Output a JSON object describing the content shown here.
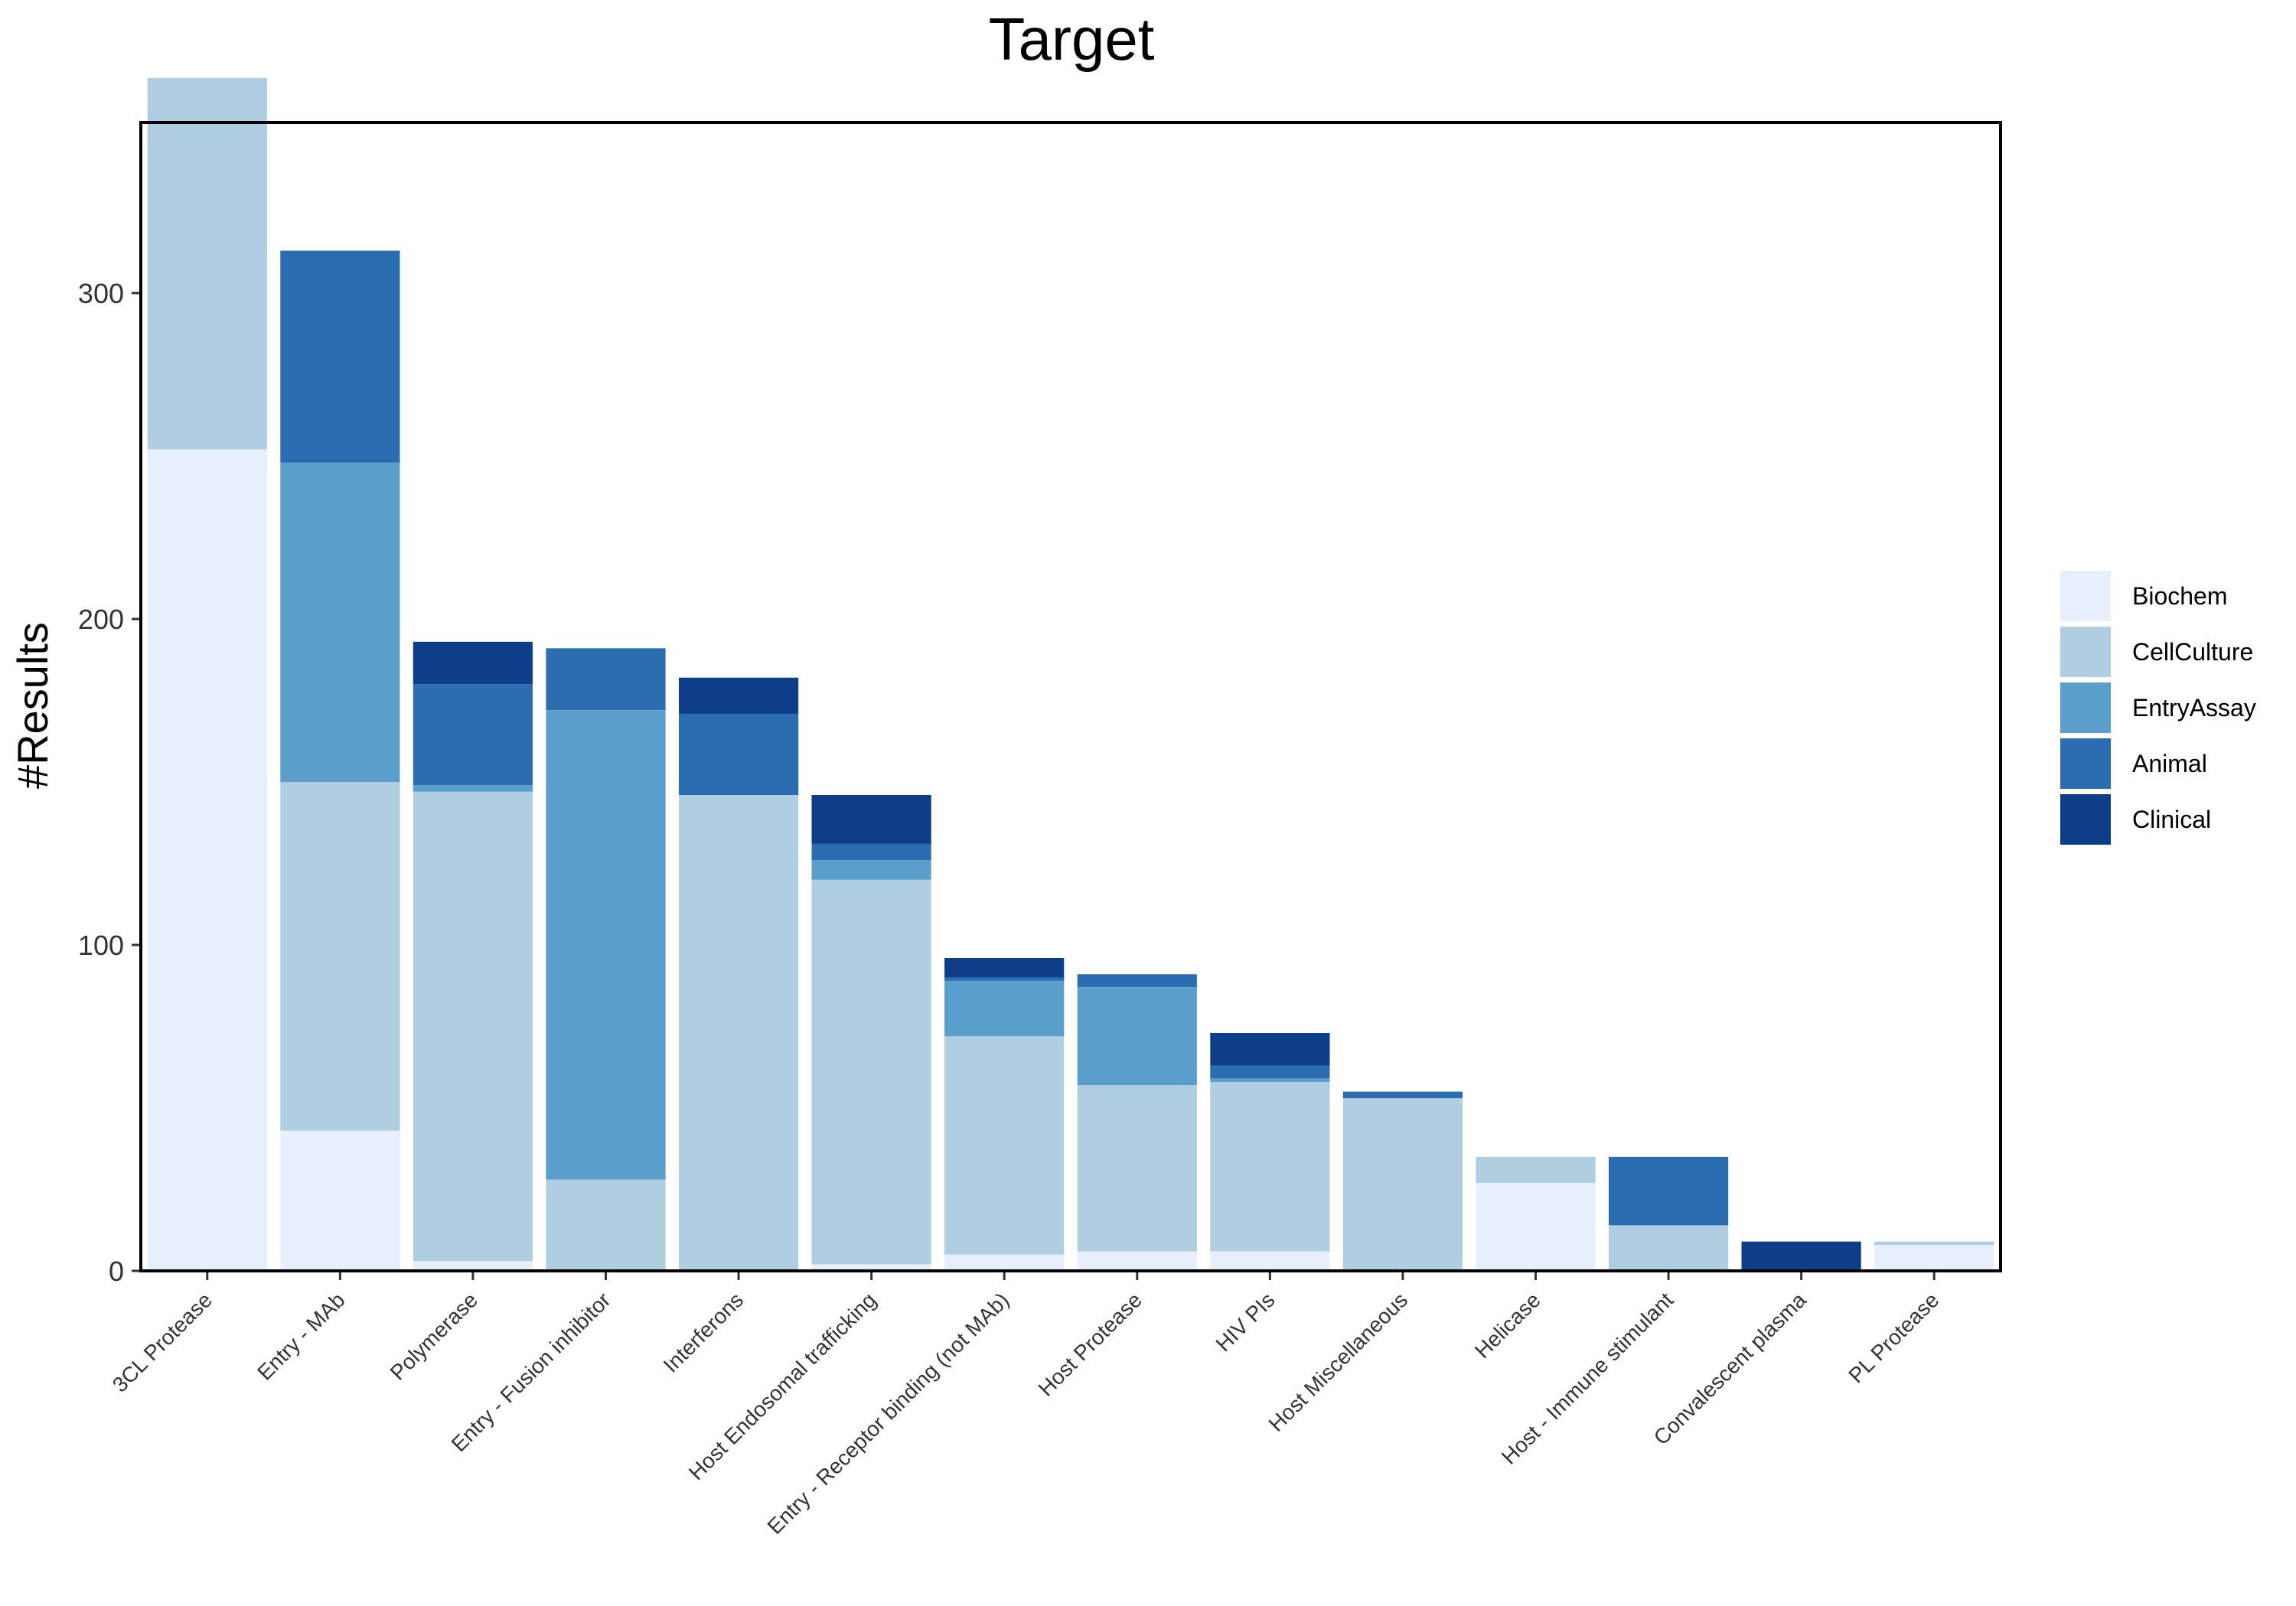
{
  "chart_data": {
    "type": "bar",
    "stacked": true,
    "title": "Target",
    "xlabel": "",
    "ylabel": "#Results",
    "ylim": [
      0,
      366
    ],
    "yticks": [
      0,
      100,
      200,
      300
    ],
    "grid": false,
    "legend_position": "right",
    "categories": [
      "3CL Protease",
      "Entry - MAb",
      "Polymerase",
      "Entry - Fusion inhibitor",
      "Interferons",
      "Host Endosomal trafficking",
      "Entry - Receptor binding (not MAb)",
      "Host Protease",
      "HIV PIs",
      "Host Miscellaneous",
      "Helicase",
      "Host - Immune stimulant",
      "Convalescent plasma",
      "PL Protease"
    ],
    "series": [
      {
        "name": "Biochem",
        "color": "#e8effc",
        "values": [
          252,
          43,
          3,
          0,
          0,
          2,
          5,
          6,
          6,
          0,
          27,
          0,
          0,
          8
        ]
      },
      {
        "name": "CellCulture",
        "color": "#b0cee2",
        "values": [
          114,
          107,
          144,
          28,
          146,
          118,
          67,
          51,
          52,
          53,
          8,
          14,
          0,
          1
        ]
      },
      {
        "name": "EntryAssay",
        "color": "#5a9fcc",
        "values": [
          0,
          98,
          2,
          144,
          0,
          6,
          17,
          30,
          1,
          0,
          0,
          0,
          0,
          0
        ]
      },
      {
        "name": "Animal",
        "color": "#2a6db0",
        "values": [
          0,
          65,
          31,
          19,
          25,
          5,
          1,
          4,
          4,
          2,
          0,
          21,
          0,
          0
        ]
      },
      {
        "name": "Clinical",
        "color": "#0e3d8a",
        "values": [
          0,
          0,
          13,
          0,
          11,
          15,
          6,
          0,
          10,
          0,
          0,
          0,
          9,
          0
        ]
      }
    ]
  }
}
